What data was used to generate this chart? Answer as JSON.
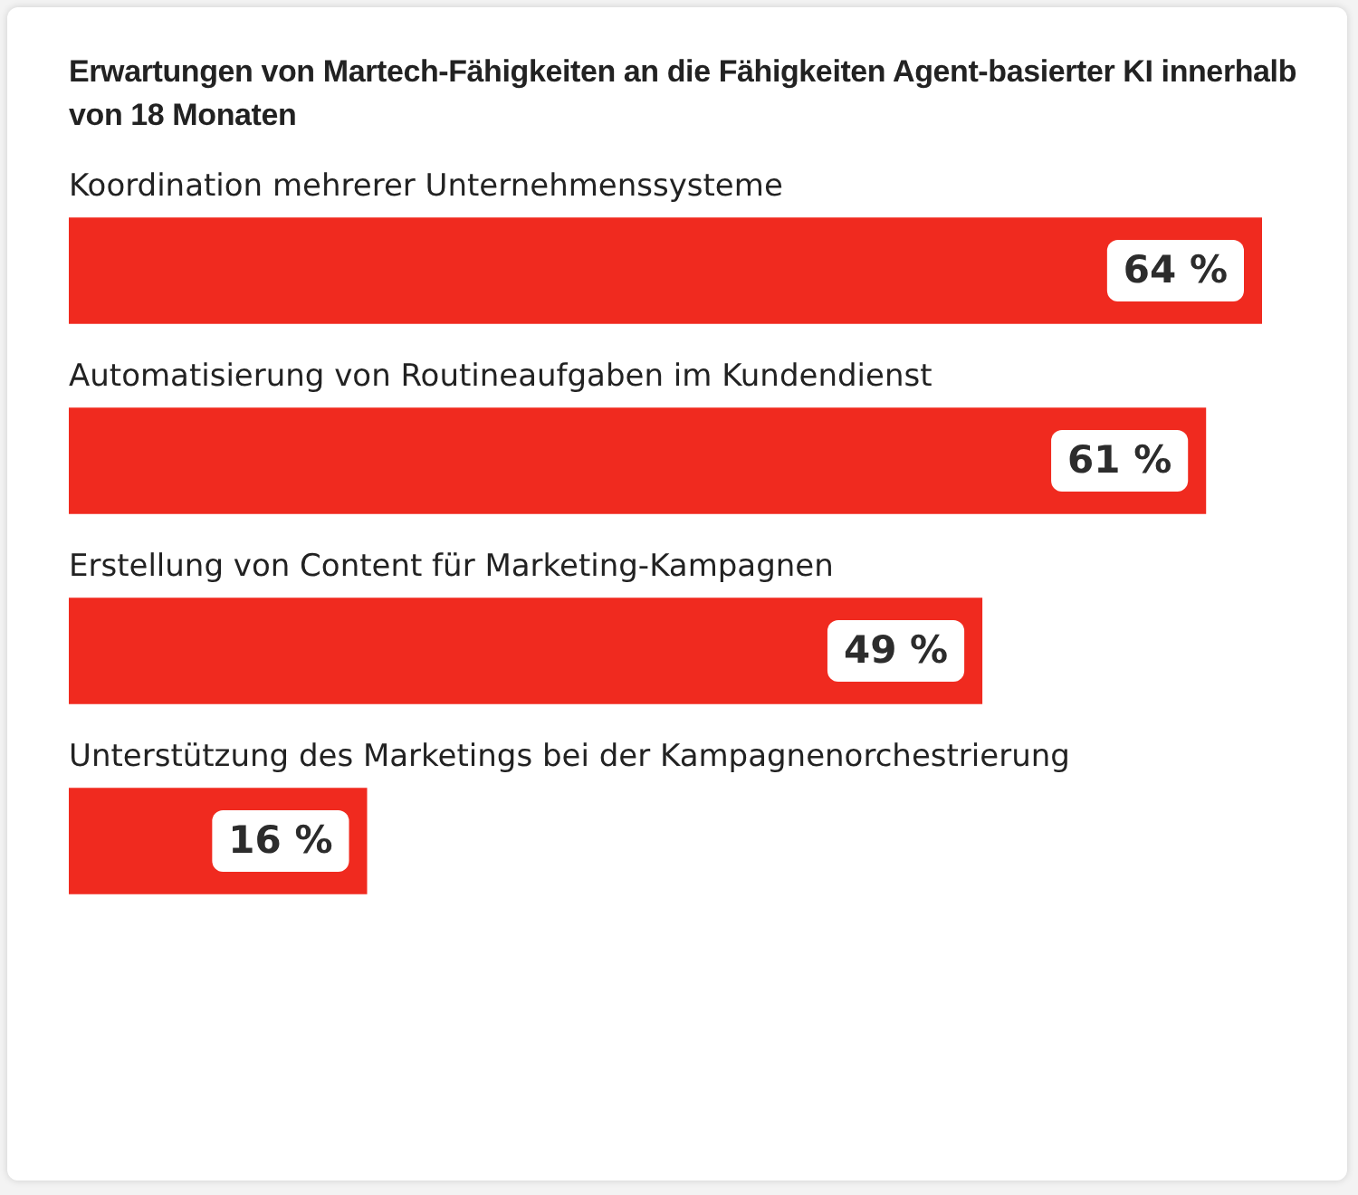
{
  "chart_data": {
    "type": "bar",
    "orientation": "horizontal",
    "title": "Erwartungen von Martech-Fähigkeiten an die Fähigkeiten Agent-basierter KI innerhalb von 18 Monaten",
    "categories": [
      "Koordination mehrerer Unternehmenssysteme",
      "Automatisierung von Routineaufgaben im Kundendienst",
      "Erstellung von Content für Marketing-Kampagnen",
      "Unterstützung des Marketings bei der Kampagnenorchestrierung"
    ],
    "values": [
      64,
      61,
      49,
      16
    ],
    "value_labels": [
      "64 %",
      "61 %",
      "49 %",
      "16 %"
    ],
    "color": "#f02a1f"
  }
}
